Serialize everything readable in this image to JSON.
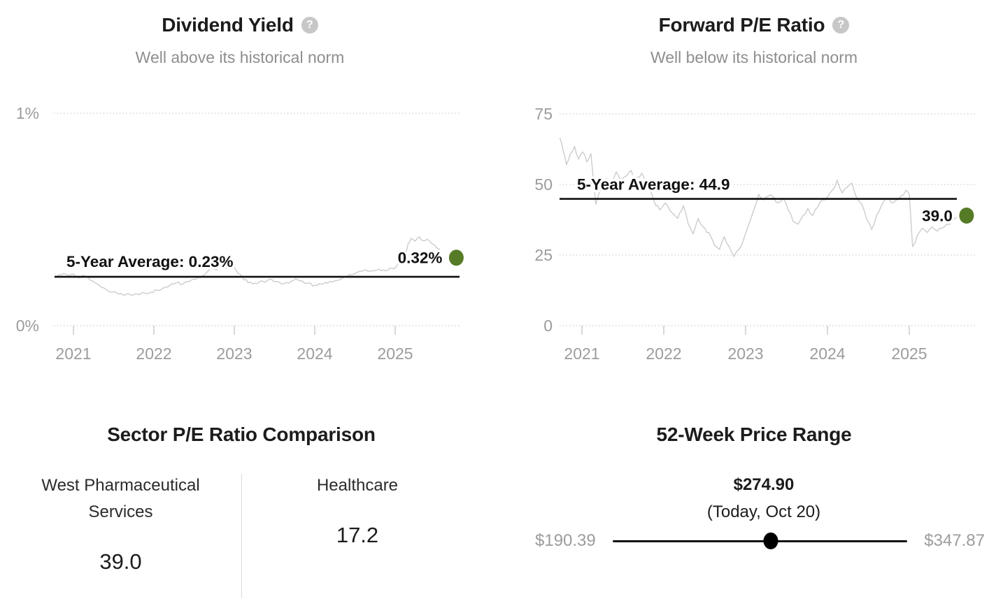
{
  "icons": {
    "help_glyph": "?"
  },
  "colors": {
    "title": "#1c1c1c",
    "subtitle": "#8e8e8e",
    "axis_label": "#9c9c9c",
    "grid": "#d6d6d6",
    "tick": "#cfcfcf",
    "series_line": "#cccccc",
    "average_line": "#111111",
    "marker_green": "#567b26",
    "range_gray": "#9c9c9c",
    "divider": "#d9d9d9"
  },
  "chart_data": [
    {
      "id": "dividend_yield",
      "type": "line",
      "title": "Dividend Yield",
      "subtitle": "Well above its historical norm",
      "xlim": [
        2020.7,
        2025.9
      ],
      "ylim": [
        0,
        1
      ],
      "grid": "horizontal-dotted",
      "legend_position": "none",
      "yticks": [
        {
          "value": 1,
          "label": "1%"
        },
        {
          "value": 0,
          "label": "0%"
        }
      ],
      "xticks": [
        {
          "value": 2021,
          "label": "2021"
        },
        {
          "value": 2022,
          "label": "2022"
        },
        {
          "value": 2023,
          "label": "2023"
        },
        {
          "value": 2024,
          "label": "2024"
        },
        {
          "value": 2025,
          "label": "2025"
        }
      ],
      "average": {
        "value": 0.23,
        "label": "5-Year Average: 0.23%"
      },
      "current": {
        "x": 2025.76,
        "value": 0.32,
        "label": "0.32%"
      },
      "points": [
        [
          2020.76,
          0.23
        ],
        [
          2020.82,
          0.24
        ],
        [
          2020.88,
          0.246
        ],
        [
          2020.94,
          0.236
        ],
        [
          2021.0,
          0.243
        ],
        [
          2021.06,
          0.226
        ],
        [
          2021.12,
          0.237
        ],
        [
          2021.18,
          0.228
        ],
        [
          2021.24,
          0.21
        ],
        [
          2021.32,
          0.19
        ],
        [
          2021.4,
          0.172
        ],
        [
          2021.48,
          0.158
        ],
        [
          2021.56,
          0.148
        ],
        [
          2021.62,
          0.143
        ],
        [
          2021.68,
          0.152
        ],
        [
          2021.74,
          0.144
        ],
        [
          2021.8,
          0.148
        ],
        [
          2021.88,
          0.155
        ],
        [
          2021.96,
          0.158
        ],
        [
          2022.04,
          0.168
        ],
        [
          2022.12,
          0.178
        ],
        [
          2022.2,
          0.19
        ],
        [
          2022.28,
          0.202
        ],
        [
          2022.36,
          0.196
        ],
        [
          2022.44,
          0.208
        ],
        [
          2022.52,
          0.218
        ],
        [
          2022.6,
          0.232
        ],
        [
          2022.66,
          0.252
        ],
        [
          2022.72,
          0.268
        ],
        [
          2022.78,
          0.262
        ],
        [
          2022.84,
          0.276
        ],
        [
          2022.9,
          0.27
        ],
        [
          2022.96,
          0.298
        ],
        [
          2023.02,
          0.262
        ],
        [
          2023.07,
          0.242
        ],
        [
          2023.12,
          0.215
        ],
        [
          2023.2,
          0.205
        ],
        [
          2023.28,
          0.198
        ],
        [
          2023.36,
          0.208
        ],
        [
          2023.44,
          0.218
        ],
        [
          2023.52,
          0.208
        ],
        [
          2023.6,
          0.196
        ],
        [
          2023.68,
          0.2
        ],
        [
          2023.76,
          0.222
        ],
        [
          2023.84,
          0.212
        ],
        [
          2023.92,
          0.2
        ],
        [
          2024.0,
          0.19
        ],
        [
          2024.08,
          0.196
        ],
        [
          2024.16,
          0.2
        ],
        [
          2024.24,
          0.21
        ],
        [
          2024.32,
          0.218
        ],
        [
          2024.4,
          0.23
        ],
        [
          2024.48,
          0.242
        ],
        [
          2024.56,
          0.256
        ],
        [
          2024.64,
          0.262
        ],
        [
          2024.72,
          0.258
        ],
        [
          2024.8,
          0.266
        ],
        [
          2024.88,
          0.258
        ],
        [
          2024.96,
          0.27
        ],
        [
          2025.02,
          0.28
        ],
        [
          2025.07,
          0.33
        ],
        [
          2025.11,
          0.302
        ],
        [
          2025.16,
          0.385
        ],
        [
          2025.2,
          0.412
        ],
        [
          2025.25,
          0.398
        ],
        [
          2025.3,
          0.418
        ],
        [
          2025.35,
          0.4
        ],
        [
          2025.4,
          0.408
        ],
        [
          2025.46,
          0.385
        ],
        [
          2025.52,
          0.365
        ],
        [
          2025.58,
          0.345
        ]
      ]
    },
    {
      "id": "forward_pe",
      "type": "line",
      "title": "Forward P/E Ratio",
      "subtitle": "Well below its historical norm",
      "xlim": [
        2020.7,
        2025.9
      ],
      "ylim": [
        0,
        75
      ],
      "grid": "horizontal-dotted",
      "legend_position": "none",
      "yticks": [
        {
          "value": 75,
          "label": "75"
        },
        {
          "value": 50,
          "label": "50"
        },
        {
          "value": 25,
          "label": "25"
        },
        {
          "value": 0,
          "label": "0"
        }
      ],
      "xticks": [
        {
          "value": 2021,
          "label": "2021"
        },
        {
          "value": 2022,
          "label": "2022"
        },
        {
          "value": 2023,
          "label": "2023"
        },
        {
          "value": 2024,
          "label": "2024"
        },
        {
          "value": 2025,
          "label": "2025"
        }
      ],
      "average": {
        "value": 44.9,
        "label": "5-Year Average: 44.9"
      },
      "current": {
        "x": 2025.7,
        "value": 39.0,
        "label": "39.0"
      },
      "points": [
        [
          2020.73,
          66.5
        ],
        [
          2020.77,
          62.0
        ],
        [
          2020.81,
          57.0
        ],
        [
          2020.86,
          61.0
        ],
        [
          2020.91,
          63.5
        ],
        [
          2020.96,
          59.0
        ],
        [
          2021.01,
          61.5
        ],
        [
          2021.06,
          58.0
        ],
        [
          2021.11,
          61.0
        ],
        [
          2021.17,
          43.0
        ],
        [
          2021.24,
          49.0
        ],
        [
          2021.3,
          52.0
        ],
        [
          2021.36,
          50.0
        ],
        [
          2021.42,
          54.5
        ],
        [
          2021.48,
          51.5
        ],
        [
          2021.54,
          53.0
        ],
        [
          2021.6,
          55.0
        ],
        [
          2021.66,
          52.0
        ],
        [
          2021.73,
          54.0
        ],
        [
          2021.8,
          50.0
        ],
        [
          2021.88,
          44.0
        ],
        [
          2021.95,
          41.0
        ],
        [
          2022.02,
          43.5
        ],
        [
          2022.1,
          40.0
        ],
        [
          2022.17,
          38.0
        ],
        [
          2022.24,
          42.5
        ],
        [
          2022.3,
          36.0
        ],
        [
          2022.36,
          32.5
        ],
        [
          2022.42,
          38.0
        ],
        [
          2022.48,
          35.0
        ],
        [
          2022.55,
          33.0
        ],
        [
          2022.62,
          28.5
        ],
        [
          2022.68,
          27.0
        ],
        [
          2022.74,
          31.5
        ],
        [
          2022.8,
          28.0
        ],
        [
          2022.86,
          24.5
        ],
        [
          2022.92,
          27.0
        ],
        [
          2022.98,
          31.0
        ],
        [
          2023.04,
          36.0
        ],
        [
          2023.1,
          41.0
        ],
        [
          2023.16,
          46.5
        ],
        [
          2023.22,
          44.5
        ],
        [
          2023.28,
          46.0
        ],
        [
          2023.34,
          45.5
        ],
        [
          2023.4,
          43.5
        ],
        [
          2023.46,
          45.0
        ],
        [
          2023.52,
          41.0
        ],
        [
          2023.58,
          37.0
        ],
        [
          2023.64,
          36.0
        ],
        [
          2023.7,
          39.0
        ],
        [
          2023.76,
          41.5
        ],
        [
          2023.82,
          39.0
        ],
        [
          2023.88,
          42.0
        ],
        [
          2023.94,
          44.5
        ],
        [
          2024.0,
          45.5
        ],
        [
          2024.06,
          48.0
        ],
        [
          2024.12,
          51.5
        ],
        [
          2024.18,
          47.0
        ],
        [
          2024.24,
          49.0
        ],
        [
          2024.3,
          50.5
        ],
        [
          2024.36,
          45.0
        ],
        [
          2024.42,
          43.0
        ],
        [
          2024.48,
          37.5
        ],
        [
          2024.54,
          34.0
        ],
        [
          2024.6,
          39.0
        ],
        [
          2024.66,
          42.5
        ],
        [
          2024.72,
          45.0
        ],
        [
          2024.78,
          43.5
        ],
        [
          2024.84,
          44.5
        ],
        [
          2024.9,
          46.0
        ],
        [
          2024.96,
          48.0
        ],
        [
          2025.0,
          46.5
        ],
        [
          2025.04,
          28.0
        ],
        [
          2025.1,
          32.0
        ],
        [
          2025.16,
          34.5
        ],
        [
          2025.22,
          33.0
        ],
        [
          2025.28,
          35.0
        ],
        [
          2025.34,
          33.5
        ],
        [
          2025.4,
          34.5
        ],
        [
          2025.46,
          36.0
        ],
        [
          2025.52,
          37.0
        ],
        [
          2025.58,
          38.5
        ]
      ]
    },
    {
      "id": "sector_pe_comparison",
      "type": "table",
      "title": "Sector P/E Ratio Comparison",
      "columns": [
        {
          "label": "West Pharmaceutical Services",
          "value": "39.0"
        },
        {
          "label": "Healthcare",
          "value": "17.2"
        }
      ]
    },
    {
      "id": "price_range_52w",
      "type": "range",
      "title": "52-Week Price Range",
      "current_label": "$274.90",
      "current_sublabel": "(Today, Oct 20)",
      "min": 190.39,
      "max": 347.87,
      "current": 274.9,
      "min_label": "$190.39",
      "max_label": "$347.87"
    }
  ]
}
